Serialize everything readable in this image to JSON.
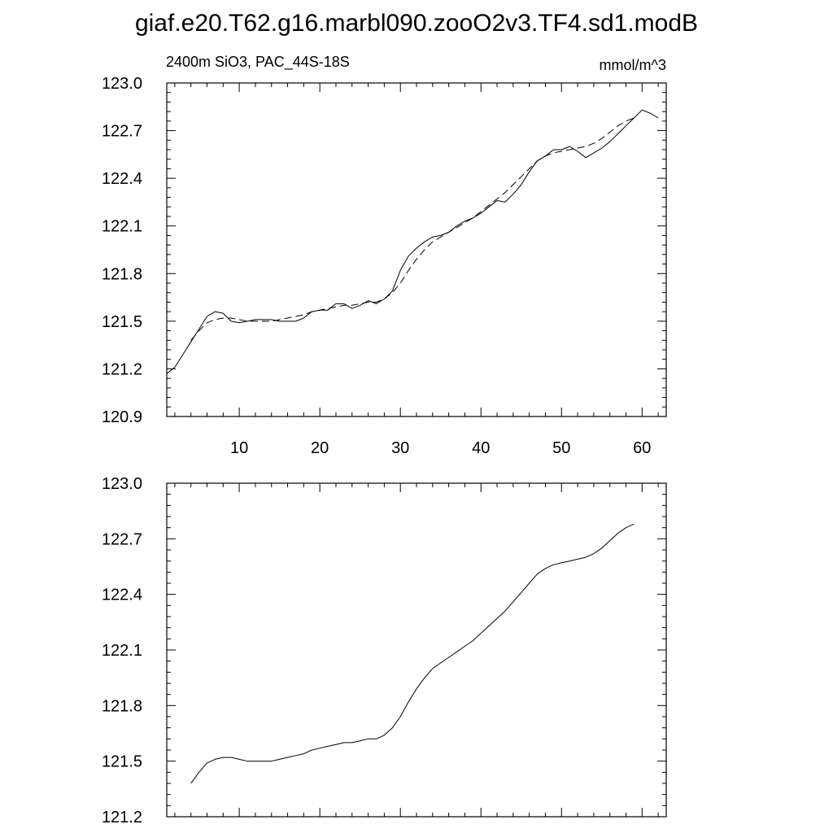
{
  "title": "giaf.e20.T62.g16.marbl090.zooO2v3.TF4.sd1.modB",
  "chart_data": [
    {
      "type": "line",
      "subtitle_left": "2400m SiO3, PAC_44S-18S",
      "subtitle_right": "mmol/m^3",
      "xlim": [
        1,
        63
      ],
      "ylim": [
        120.9,
        123.0
      ],
      "x_ticks": [
        10,
        20,
        30,
        40,
        50,
        60
      ],
      "x_tick_labels": [
        "10",
        "20",
        "30",
        "40",
        "50",
        "60"
      ],
      "y_ticks": [
        120.9,
        121.2,
        121.5,
        121.8,
        122.1,
        122.4,
        122.7,
        123.0
      ],
      "y_tick_labels": [
        "120.9",
        "121.2",
        "121.5",
        "121.8",
        "122.1",
        "122.4",
        "122.7",
        "123.0"
      ],
      "grid": false,
      "series": [
        {
          "style": "solid",
          "x": [
            1,
            2,
            3,
            4,
            5,
            6,
            7,
            8,
            9,
            10,
            11,
            12,
            13,
            14,
            15,
            16,
            17,
            18,
            19,
            20,
            21,
            22,
            23,
            24,
            25,
            26,
            27,
            28,
            29,
            30,
            31,
            32,
            33,
            34,
            35,
            36,
            37,
            38,
            39,
            40,
            41,
            42,
            43,
            44,
            45,
            46,
            47,
            48,
            49,
            50,
            51,
            52,
            53,
            54,
            55,
            56,
            57,
            58,
            59,
            60,
            61,
            62
          ],
          "values": [
            121.17,
            121.21,
            121.29,
            121.37,
            121.45,
            121.53,
            121.56,
            121.55,
            121.5,
            121.49,
            121.5,
            121.51,
            121.51,
            121.51,
            121.5,
            121.5,
            121.5,
            121.52,
            121.56,
            121.57,
            121.57,
            121.61,
            121.61,
            121.58,
            121.6,
            121.63,
            121.61,
            121.64,
            121.69,
            121.82,
            121.91,
            121.96,
            122.0,
            122.03,
            122.04,
            122.06,
            122.1,
            122.13,
            122.15,
            122.18,
            122.22,
            122.26,
            122.25,
            122.3,
            122.36,
            122.44,
            122.51,
            122.54,
            122.58,
            122.58,
            122.6,
            122.57,
            122.53,
            122.56,
            122.59,
            122.63,
            122.68,
            122.73,
            122.78,
            122.83,
            122.81,
            122.78
          ]
        },
        {
          "style": "dashed",
          "x": [
            4,
            5,
            6,
            7,
            8,
            9,
            10,
            11,
            12,
            13,
            14,
            15,
            16,
            17,
            18,
            19,
            20,
            21,
            22,
            23,
            24,
            25,
            26,
            27,
            28,
            29,
            30,
            31,
            32,
            33,
            34,
            35,
            36,
            37,
            38,
            39,
            40,
            41,
            42,
            43,
            44,
            45,
            46,
            47,
            48,
            49,
            50,
            51,
            52,
            53,
            54,
            55,
            56,
            57,
            58,
            59
          ],
          "values": [
            121.38,
            121.44,
            121.49,
            121.51,
            121.52,
            121.52,
            121.51,
            121.5,
            121.5,
            121.5,
            121.5,
            121.51,
            121.52,
            121.53,
            121.54,
            121.56,
            121.57,
            121.58,
            121.59,
            121.6,
            121.6,
            121.61,
            121.62,
            121.62,
            121.64,
            121.68,
            121.74,
            121.82,
            121.89,
            121.95,
            122.0,
            122.03,
            122.06,
            122.09,
            122.12,
            122.15,
            122.19,
            122.23,
            122.27,
            122.31,
            122.36,
            122.41,
            122.46,
            122.51,
            122.54,
            122.56,
            122.57,
            122.58,
            122.59,
            122.6,
            122.62,
            122.65,
            122.69,
            122.73,
            122.76,
            122.78
          ]
        }
      ]
    },
    {
      "type": "line",
      "xlim": [
        1,
        63
      ],
      "ylim": [
        121.2,
        123.0
      ],
      "x_ticks": [
        10,
        20,
        30,
        40,
        50,
        60
      ],
      "x_tick_labels": [],
      "y_ticks": [
        121.2,
        121.5,
        121.8,
        122.1,
        122.4,
        122.7,
        123.0
      ],
      "y_tick_labels": [
        "121.2",
        "121.5",
        "121.8",
        "122.1",
        "122.4",
        "122.7",
        "123.0"
      ],
      "grid": false,
      "series": [
        {
          "style": "solid",
          "x": [
            4,
            5,
            6,
            7,
            8,
            9,
            10,
            11,
            12,
            13,
            14,
            15,
            16,
            17,
            18,
            19,
            20,
            21,
            22,
            23,
            24,
            25,
            26,
            27,
            28,
            29,
            30,
            31,
            32,
            33,
            34,
            35,
            36,
            37,
            38,
            39,
            40,
            41,
            42,
            43,
            44,
            45,
            46,
            47,
            48,
            49,
            50,
            51,
            52,
            53,
            54,
            55,
            56,
            57,
            58,
            59
          ],
          "values": [
            121.38,
            121.44,
            121.49,
            121.51,
            121.52,
            121.52,
            121.51,
            121.5,
            121.5,
            121.5,
            121.5,
            121.51,
            121.52,
            121.53,
            121.54,
            121.56,
            121.57,
            121.58,
            121.59,
            121.6,
            121.6,
            121.61,
            121.62,
            121.62,
            121.64,
            121.68,
            121.74,
            121.82,
            121.89,
            121.95,
            122.0,
            122.03,
            122.06,
            122.09,
            122.12,
            122.15,
            122.19,
            122.23,
            122.27,
            122.31,
            122.36,
            122.41,
            122.46,
            122.51,
            122.54,
            122.56,
            122.57,
            122.58,
            122.59,
            122.6,
            122.62,
            122.65,
            122.69,
            122.73,
            122.76,
            122.78
          ]
        }
      ]
    }
  ]
}
